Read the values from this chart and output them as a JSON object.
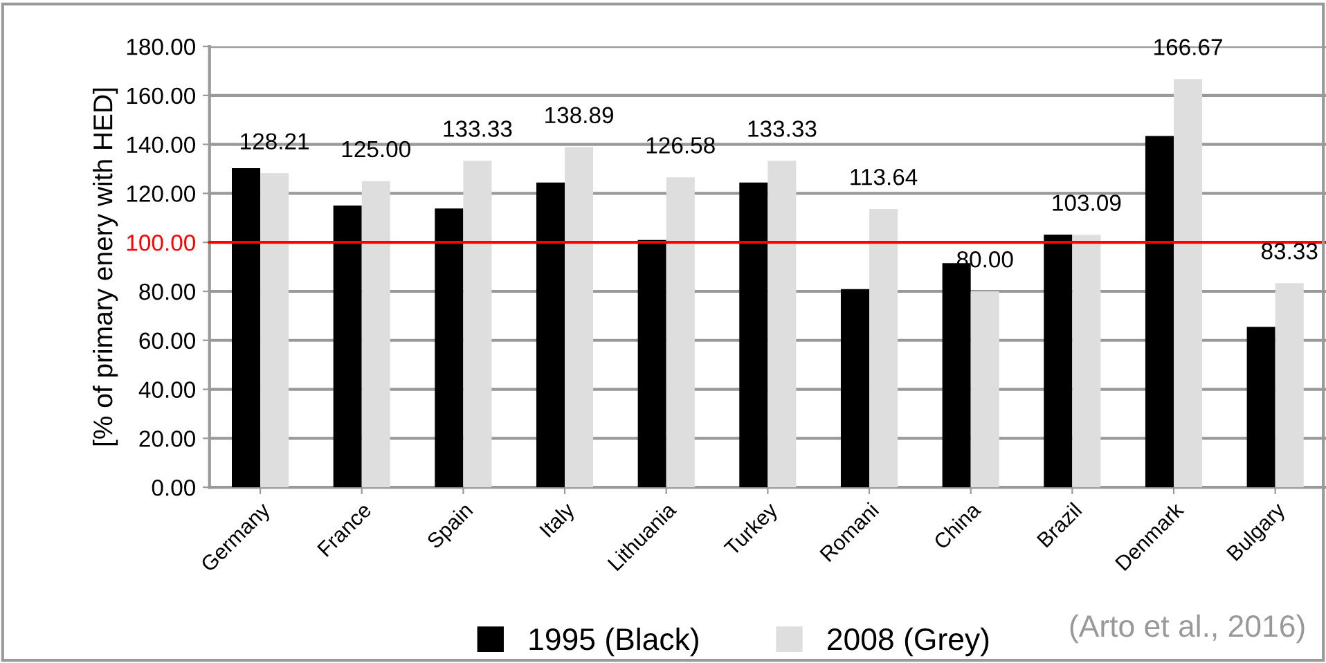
{
  "chart_data": {
    "type": "bar",
    "ylabel": "[% of primary enery with HED]",
    "categories": [
      "Germany",
      "France",
      "Spain",
      "Italy",
      "Lithuania",
      "Turkey",
      "Romani",
      "China",
      "Brazil",
      "Denmark",
      "Bulgary"
    ],
    "series": [
      {
        "name": "1995 (Black)",
        "color": "#000000",
        "values": [
          130.3,
          115,
          113.8,
          124.4,
          101,
          124.4,
          80.9,
          91.5,
          103.2,
          143.4,
          65.5
        ]
      },
      {
        "name": "2008 (Grey)",
        "color": "#dedede",
        "values": [
          128.21,
          125.0,
          133.33,
          138.89,
          126.58,
          133.33,
          113.64,
          80.0,
          103.09,
          166.67,
          83.33
        ],
        "value_labels": [
          "128.21",
          "125.00",
          "133.33",
          "138.89",
          "126.58",
          "133.33",
          "113.64",
          "80.00",
          "103.09",
          "166.67",
          "83.33"
        ]
      }
    ],
    "ylim": [
      0,
      180
    ],
    "yticks": [
      {
        "value": 0,
        "label": "0.00"
      },
      {
        "value": 20,
        "label": "20.00"
      },
      {
        "value": 40,
        "label": "40.00"
      },
      {
        "value": 60,
        "label": "60.00"
      },
      {
        "value": 80,
        "label": "80.00"
      },
      {
        "value": 100,
        "label": "100.00"
      },
      {
        "value": 120,
        "label": "120.00"
      },
      {
        "value": 140,
        "label": "140.00"
      },
      {
        "value": 160,
        "label": "160.00"
      },
      {
        "value": 180,
        "label": "180.00"
      }
    ],
    "ref_lines": [
      {
        "axis": "y",
        "value": 100,
        "color": "#ff0000"
      }
    ],
    "grid": "y",
    "legend": "bottom",
    "annotations": [
      "(Arto et al., 2016)"
    ]
  }
}
